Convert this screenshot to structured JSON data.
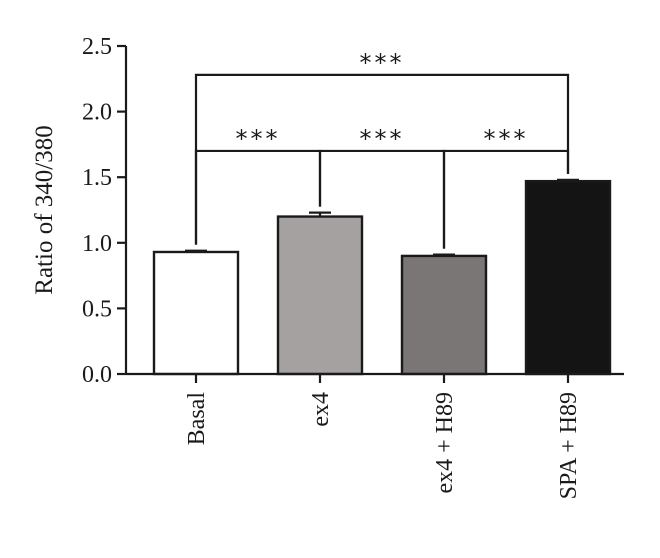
{
  "chart_data": {
    "type": "bar",
    "ylabel": "Ratio of 340/380",
    "xlabel": "",
    "title": "",
    "ylim": [
      0,
      2.5
    ],
    "yticks": [
      "0.0",
      "0.5",
      "1.0",
      "1.5",
      "2.0",
      "2.5"
    ],
    "categories": [
      "Basal",
      "ex4",
      "ex4 + H89",
      "SPA + H89"
    ],
    "values": [
      0.93,
      1.2,
      0.9,
      1.47
    ],
    "errors": [
      0.01,
      0.03,
      0.01,
      0.01
    ],
    "bar_colors": [
      "#ffffff",
      "#a6a1a1",
      "#7b7676",
      "#141414"
    ],
    "significance": [
      {
        "from": "Basal",
        "to": "SPA + H89",
        "label": "***",
        "y": 2.28
      },
      {
        "from": "Basal",
        "to": "ex4",
        "label": "***",
        "y": 1.7
      },
      {
        "from": "ex4",
        "to": "ex4 + H89",
        "label": "***",
        "y": 1.7
      },
      {
        "from": "ex4 + H89",
        "to": "SPA + H89",
        "label": "***",
        "y": 1.7
      }
    ],
    "grid": false,
    "legend": "none"
  }
}
